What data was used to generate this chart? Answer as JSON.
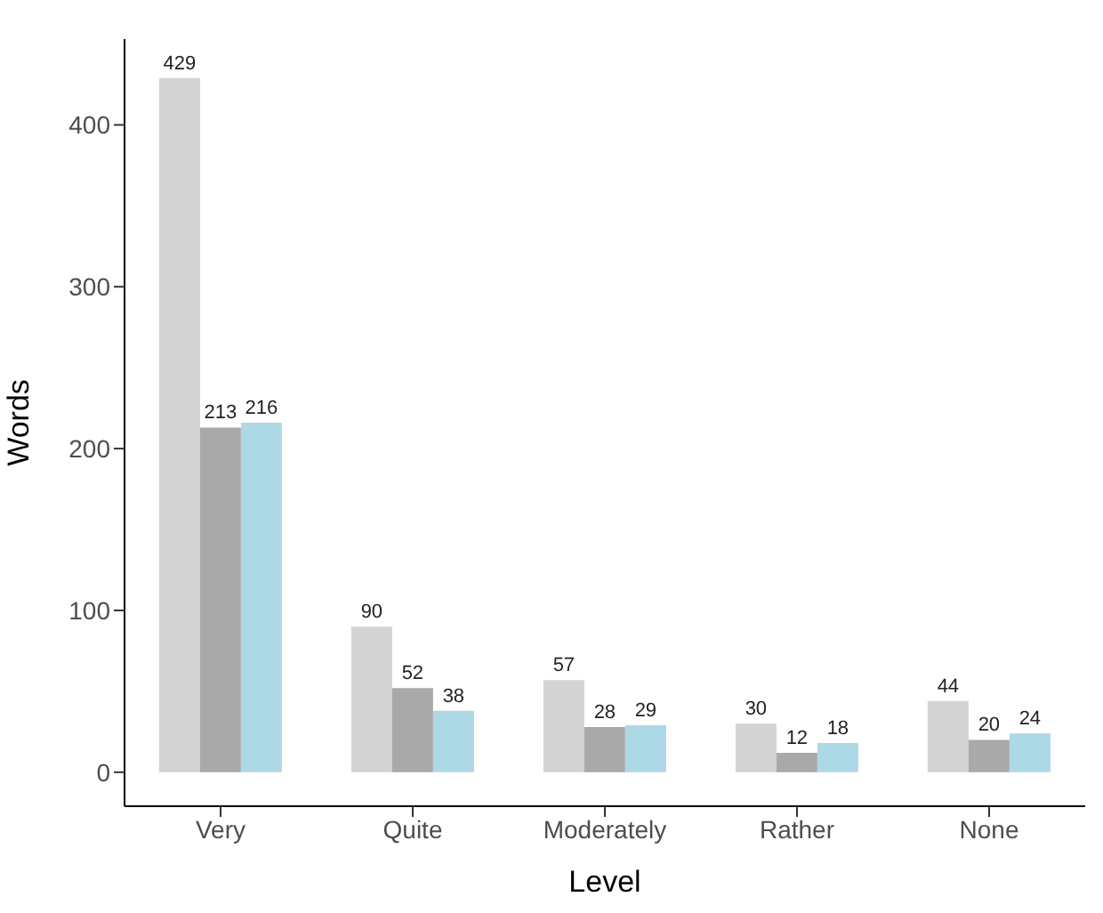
{
  "chart_data": {
    "type": "bar",
    "xlabel": "Level",
    "ylabel": "Words",
    "categories": [
      "Very",
      "Quite",
      "Moderately",
      "Rather",
      "None"
    ],
    "series": [
      {
        "color": "#d3d3d3",
        "values": [
          429,
          90,
          57,
          30,
          44
        ]
      },
      {
        "color": "#a9a9a9",
        "values": [
          213,
          52,
          28,
          12,
          20
        ]
      },
      {
        "color": "#add8e6",
        "values": [
          216,
          38,
          29,
          18,
          24
        ]
      }
    ],
    "ylim": [
      -21,
      453
    ],
    "yticks": [
      0,
      100,
      200,
      300,
      400
    ],
    "grid": false,
    "legend": false,
    "data_labels": true
  }
}
